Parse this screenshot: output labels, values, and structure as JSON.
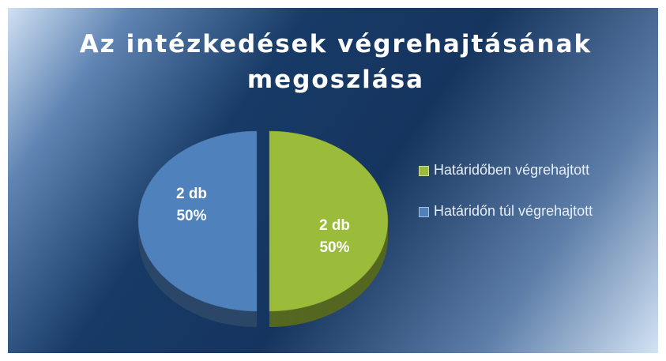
{
  "chart_data": {
    "type": "pie",
    "title": [
      "Az intézkedések végrehajtásának",
      "megoszlása"
    ],
    "categories": [
      "Határidőben végrehajtott",
      "Határidőn túl végrehajtott"
    ],
    "values": [
      2,
      2
    ],
    "value_labels": [
      "2 db",
      "2 db"
    ],
    "percentages": [
      50,
      50
    ],
    "percentage_labels": [
      "50%",
      "50%"
    ],
    "colors": [
      "#9bbb3b",
      "#4f81bd"
    ],
    "legend": "right"
  }
}
